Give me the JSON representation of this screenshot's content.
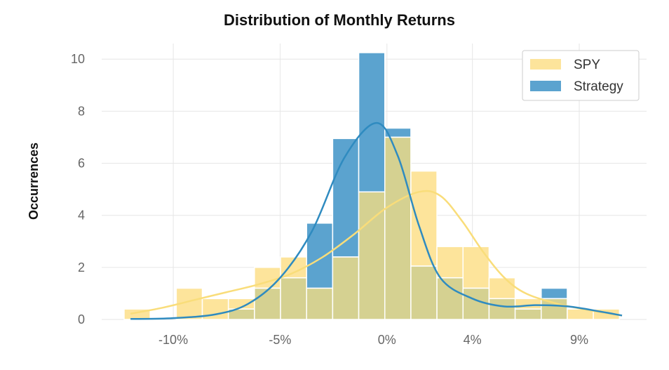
{
  "chart_data": {
    "type": "histogram",
    "title": "Distribution of Monthly Returns",
    "xlabel": "",
    "ylabel": "Occurrences",
    "xlim": [
      -0.1335,
      0.1215
    ],
    "ylim": [
      0,
      10.6
    ],
    "x_ticks": [
      {
        "value": -0.1,
        "label": "-10%"
      },
      {
        "value": -0.05,
        "label": "-5%"
      },
      {
        "value": 0.0,
        "label": "0%"
      },
      {
        "value": 0.04,
        "label": "4%"
      },
      {
        "value": 0.09,
        "label": "9%"
      }
    ],
    "y_ticks": [
      0,
      2,
      4,
      6,
      8,
      10
    ],
    "grid": true,
    "legend_position": "top-right",
    "bins": [
      -0.123,
      -0.1108,
      -0.0986,
      -0.0864,
      -0.0742,
      -0.062,
      -0.0498,
      -0.0376,
      -0.0254,
      -0.0132,
      -0.001,
      0.0112,
      0.0234,
      0.0356,
      0.0478,
      0.06,
      0.0722,
      0.0844,
      0.0966,
      0.1088
    ],
    "series": [
      {
        "name": "SPY",
        "color": "#fde49b",
        "kde_color": "#f9dd7a",
        "counts": [
          0.4,
          0,
          1.2,
          0.8,
          0.8,
          2.0,
          2.4,
          1.2,
          2.4,
          4.9,
          7.0,
          5.7,
          2.8,
          2.8,
          1.6,
          0.8,
          0.8,
          0.4,
          0.4
        ],
        "kde_y": [
          0.22,
          0.45,
          0.75,
          1.05,
          1.35,
          1.75,
          2.4,
          3.3,
          4.3,
          4.9,
          4.75,
          3.8,
          2.6,
          1.6,
          1.0,
          0.6,
          0.35,
          0.15
        ]
      },
      {
        "name": "Strategy",
        "color": "#5ba3cf",
        "kde_color": "#2f8bc0",
        "counts": [
          0,
          0,
          0,
          0,
          0.4,
          1.2,
          1.6,
          3.7,
          6.95,
          10.25,
          7.35,
          2.05,
          1.6,
          1.2,
          0.8,
          0.4,
          1.2,
          0.0,
          0.0
        ],
        "kde_y": [
          0.02,
          0.05,
          0.2,
          0.6,
          1.6,
          3.4,
          6.2,
          7.55,
          6.3,
          3.6,
          1.6,
          0.8,
          0.5,
          0.55,
          0.5,
          0.3,
          0.15
        ]
      }
    ],
    "overlap_color": "#d5d191",
    "kde_x": {
      "SPY": [
        -0.12,
        -0.105,
        -0.09,
        -0.075,
        -0.06,
        -0.045,
        -0.03,
        -0.015,
        0.0,
        0.015,
        0.025,
        0.035,
        0.045,
        0.055,
        0.065,
        0.08,
        0.095,
        0.11
      ],
      "Strategy": [
        -0.12,
        -0.1,
        -0.08,
        -0.065,
        -0.05,
        -0.035,
        -0.02,
        -0.005,
        0.005,
        0.015,
        0.025,
        0.04,
        0.055,
        0.07,
        0.085,
        0.1,
        0.11
      ]
    }
  }
}
